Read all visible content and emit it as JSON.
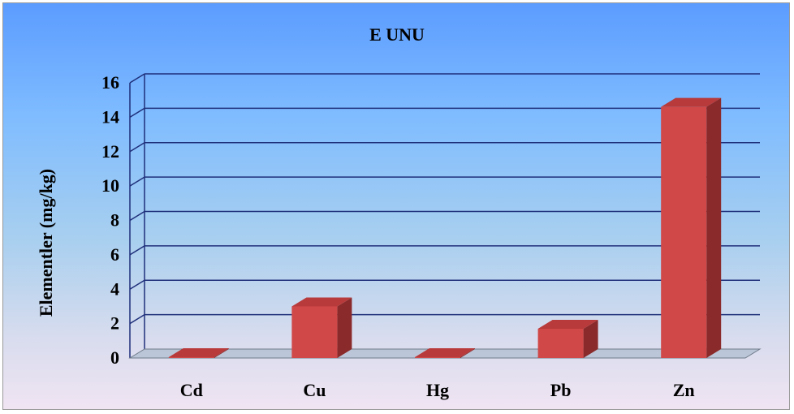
{
  "chart_data": {
    "type": "bar",
    "title": "E UNU",
    "xlabel": "",
    "ylabel": "Elementler (mg/kg)",
    "categories": [
      "Cd",
      "Cu",
      "Hg",
      "Pb",
      "Zn"
    ],
    "values": [
      0.05,
      3.0,
      0.05,
      1.7,
      14.6
    ],
    "ylim": [
      0,
      16
    ],
    "yticks": [
      "0",
      "2",
      "4",
      "6",
      "8",
      "10",
      "12",
      "14",
      "16"
    ],
    "grid": true,
    "legend": "none",
    "style": "3d",
    "colors": {
      "bar_front": "#d04848",
      "bar_side": "#8a2a2a",
      "bar_top": "#b83a3a",
      "gridline": "#1f2f7a"
    }
  }
}
